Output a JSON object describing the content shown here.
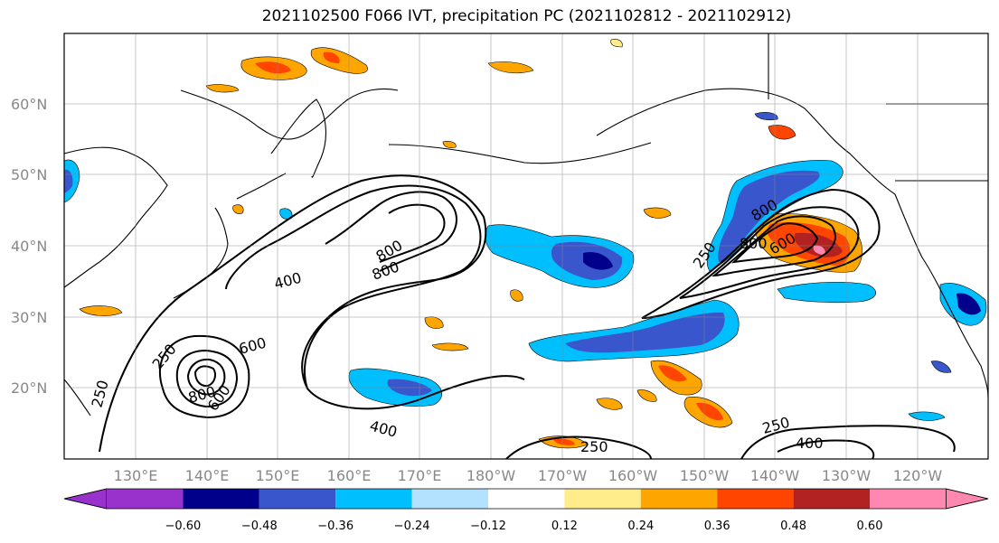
{
  "title": "2021102500 F066 IVT, precipitation PC (2021102812 - 2021102912)",
  "lat_labels": [
    "60°N",
    "50°N",
    "40°N",
    "30°N",
    "20°N"
  ],
  "lon_labels": [
    "130°E",
    "140°E",
    "150°E",
    "160°E",
    "170°E",
    "180°W",
    "170°W",
    "160°W",
    "150°W",
    "140°W",
    "130°W",
    "120°W"
  ],
  "contour_labels": [
    {
      "text": "400"
    },
    {
      "text": "800"
    },
    {
      "text": "800"
    },
    {
      "text": "250"
    },
    {
      "text": "600"
    },
    {
      "text": "800"
    },
    {
      "text": "600"
    },
    {
      "text": "250"
    },
    {
      "text": "400"
    },
    {
      "text": "250"
    },
    {
      "text": "800"
    },
    {
      "text": "600"
    },
    {
      "text": "800"
    },
    {
      "text": "250"
    },
    {
      "text": "400"
    },
    {
      "text": "250"
    }
  ],
  "colorbar": {
    "ticks": [
      "−0.60",
      "−0.48",
      "−0.36",
      "−0.24",
      "−0.12",
      "0.12",
      "0.24",
      "0.36",
      "0.48",
      "0.60"
    ],
    "colors": [
      "#9932cc",
      "#00008b",
      "#3a56cc",
      "#00bfff",
      "#b2e2ff",
      "#ffffff",
      "#ffec8b",
      "#ffa500",
      "#ff4500",
      "#b22222",
      "#ff88b0"
    ]
  },
  "colors": {
    "neg_strong": "#00008b",
    "neg_mid": "#3a56cc",
    "neg_light": "#00bfff",
    "neg_faint": "#b2e2ff",
    "pos_faint": "#ffec8b",
    "pos_light": "#ffa500",
    "pos_mid": "#ff4500",
    "pos_strong": "#b22222",
    "pos_max": "#ff88b0"
  }
}
